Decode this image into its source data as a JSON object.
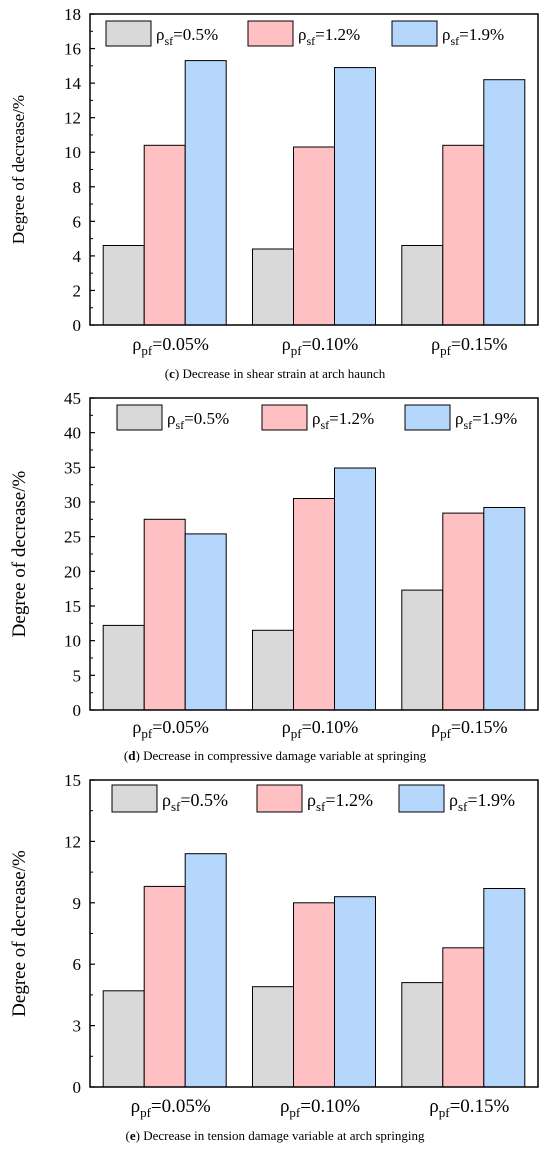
{
  "colors": {
    "s05": "#d9d9d9",
    "s12": "#ffc0c4",
    "s19": "#b5d7fb",
    "stroke": "#000000"
  },
  "chart_data": [
    {
      "type": "bar",
      "categories": [
        "ρ_pf=0.05%",
        "ρ_pf=0.10%",
        "ρ_pf=0.15%"
      ],
      "series": [
        {
          "name": "ρ_sf=0.5%",
          "values": [
            4.6,
            4.4,
            4.6
          ]
        },
        {
          "name": "ρ_sf=1.2%",
          "values": [
            10.4,
            10.3,
            10.4
          ]
        },
        {
          "name": "ρ_sf=1.9%",
          "values": [
            15.3,
            14.9,
            14.2
          ]
        }
      ],
      "ylabel": "Degree of decrease/%",
      "ylim": [
        0,
        18
      ],
      "yticks": [
        0,
        2,
        4,
        6,
        8,
        10,
        12,
        14,
        16,
        18
      ],
      "legend": "top",
      "caption_id": "(c)",
      "caption_text": " Decrease in shear strain at arch haunch"
    },
    {
      "type": "bar",
      "categories": [
        "ρ_pf=0.05%",
        "ρ_pf=0.10%",
        "ρ_pf=0.15%"
      ],
      "series": [
        {
          "name": "ρ_sf=0.5%",
          "values": [
            12.2,
            11.5,
            17.3
          ]
        },
        {
          "name": "ρ_sf=1.2%",
          "values": [
            27.5,
            30.5,
            28.4
          ]
        },
        {
          "name": "ρ_sf=1.9%",
          "values": [
            25.4,
            34.9,
            29.2
          ]
        }
      ],
      "ylabel": "Degree of decrease/%",
      "ylim": [
        0,
        45
      ],
      "yticks": [
        0,
        5,
        10,
        15,
        20,
        25,
        30,
        35,
        40,
        45
      ],
      "legend": "top",
      "caption_id": "(d)",
      "caption_text": " Decrease in compressive damage variable at springing"
    },
    {
      "type": "bar",
      "categories": [
        "ρ_pf=0.05%",
        "ρ_pf=0.10%",
        "ρ_pf=0.15%"
      ],
      "series": [
        {
          "name": "ρ_sf=0.5%",
          "values": [
            4.7,
            4.9,
            5.1
          ]
        },
        {
          "name": "ρ_sf=1.2%",
          "values": [
            9.8,
            9.0,
            6.8
          ]
        },
        {
          "name": "ρ_sf=1.9%",
          "values": [
            11.4,
            9.3,
            9.7
          ]
        }
      ],
      "ylabel": "Degree of decrease/%",
      "ylim": [
        0,
        15
      ],
      "yticks": [
        0,
        3,
        6,
        9,
        12,
        15
      ],
      "legend": "top",
      "caption_id": "(e)",
      "caption_text": " Decrease in tension damage variable at arch springing"
    }
  ]
}
